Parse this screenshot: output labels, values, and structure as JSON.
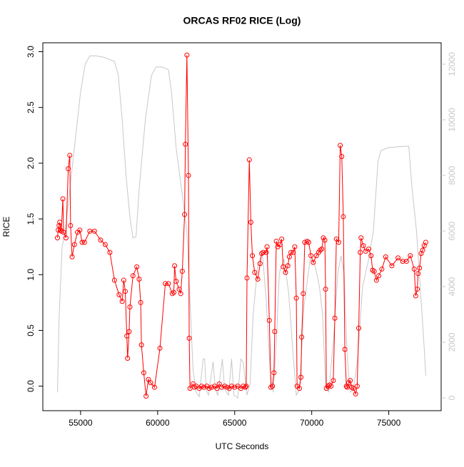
{
  "chart_data": {
    "type": "line",
    "title": "ORCAS RF02 RICE (Log)",
    "x_label": "UTC Seconds",
    "y_label": "RICE",
    "xlim": [
      52550,
      78400
    ],
    "xticks": [
      55000,
      60000,
      65000,
      70000,
      75000
    ],
    "ylim": [
      -0.22,
      3.08
    ],
    "yticks": [
      {
        "value": 0,
        "label": "0.0"
      },
      {
        "value": 0.5,
        "label": "0.5"
      },
      {
        "value": 1,
        "label": "1.0"
      },
      {
        "value": 1.5,
        "label": "1.5"
      },
      {
        "value": 2,
        "label": "2.0"
      },
      {
        "value": 2.5,
        "label": "2.5"
      },
      {
        "value": 3,
        "label": "3.0"
      }
    ],
    "y2lim": [
      -460,
      12770
    ],
    "y2ticks": [
      0,
      2000,
      4000,
      6000,
      8000,
      10000,
      12000
    ],
    "series": [
      {
        "color": "#ff0000",
        "markers": true,
        "x": [
          53500,
          53550,
          53600,
          53650,
          53700,
          53750,
          53850,
          53900,
          54050,
          54200,
          54300,
          54350,
          54450,
          54600,
          54800,
          54950,
          55100,
          55250,
          55600,
          55900,
          56300,
          56600,
          56900,
          57200,
          57500,
          57700,
          57800,
          57900,
          58000,
          58050,
          58150,
          58200,
          58400,
          58650,
          58800,
          58900,
          58950,
          59100,
          59250,
          59400,
          59550,
          59800,
          60150,
          60500,
          60700,
          60950,
          61050,
          61100,
          61200,
          61400,
          61500,
          61600,
          61750,
          61800,
          61900,
          62000,
          62050,
          62100,
          62300,
          62400,
          62500,
          62700,
          62850,
          63000,
          63200,
          63350,
          63500,
          63700,
          63850,
          64000,
          64150,
          64350,
          64500,
          64650,
          64800,
          65000,
          65200,
          65400,
          65550,
          65700,
          65750,
          65800,
          65950,
          66050,
          66150,
          66300,
          66500,
          66650,
          66750,
          66850,
          67050,
          67100,
          67250,
          67350,
          67450,
          67550,
          67600,
          67700,
          67800,
          67950,
          68050,
          68150,
          68300,
          68450,
          68550,
          68650,
          68800,
          68900,
          69000,
          69050,
          69200,
          69300,
          69350,
          69450,
          69550,
          69700,
          69800,
          69950,
          70100,
          70300,
          70450,
          70550,
          70650,
          70750,
          70850,
          70900,
          70950,
          71050,
          71150,
          71250,
          71400,
          71500,
          71600,
          71750,
          71850,
          71950,
          72050,
          72150,
          72250,
          72300,
          72400,
          72500,
          72600,
          72700,
          72850,
          72950,
          73050,
          73150,
          73200,
          73350,
          73500,
          73700,
          73850,
          73950,
          74050,
          74200,
          74350,
          74550,
          74800,
          75200,
          75600,
          75900,
          76150,
          76400,
          76650,
          76750,
          76850,
          76900,
          77000,
          77100,
          77200,
          77300,
          77400
        ],
        "values": [
          1.33,
          1.4,
          1.44,
          1.47,
          1.4,
          1.39,
          1.68,
          1.38,
          1.33,
          1.95,
          2.07,
          1.44,
          1.16,
          1.27,
          1.38,
          1.4,
          1.29,
          1.29,
          1.39,
          1.39,
          1.31,
          1.27,
          1.2,
          0.95,
          0.82,
          0.76,
          0.95,
          0.85,
          0.45,
          0.25,
          0.49,
          0.71,
          0.99,
          1.07,
          0.96,
          0.75,
          0.37,
          0.12,
          -0.09,
          0.06,
          0.03,
          -0.01,
          0.34,
          0.92,
          0.92,
          0.83,
          0.84,
          1.08,
          0.94,
          0.87,
          0.83,
          1.03,
          1.54,
          2.17,
          2.97,
          1.89,
          0.43,
          -0.02,
          0.02,
          -0.01,
          0.0,
          -0.02,
          0.0,
          -0.01,
          0.0,
          -0.02,
          -0.01,
          0.0,
          -0.02,
          0.02,
          -0.01,
          0.0,
          -0.01,
          -0.02,
          0.0,
          -0.01,
          0.0,
          -0.02,
          0.0,
          -0.01,
          0.0,
          0.97,
          2.03,
          1.47,
          1.17,
          1.02,
          0.96,
          1.1,
          1.19,
          1.2,
          1.2,
          1.25,
          0.59,
          -0.01,
          0.0,
          0.12,
          0.49,
          1.3,
          1.25,
          1.27,
          1.32,
          1.07,
          1.02,
          1.08,
          1.16,
          1.2,
          1.2,
          1.25,
          0.79,
          0.0,
          -0.02,
          0.08,
          0.44,
          0.83,
          1.29,
          1.3,
          1.29,
          1.17,
          1.11,
          1.17,
          1.2,
          1.22,
          1.23,
          1.33,
          1.31,
          0.87,
          -0.02,
          0.0,
          0.01,
          0.0,
          0.05,
          0.61,
          1.32,
          1.29,
          2.16,
          2.06,
          1.52,
          0.33,
          0.0,
          -0.01,
          0.03,
          0.05,
          -0.01,
          -0.02,
          -0.07,
          0.0,
          0.52,
          1.2,
          1.33,
          1.26,
          1.21,
          1.23,
          1.17,
          1.04,
          1.03,
          0.95,
          0.99,
          1.05,
          1.16,
          1.08,
          1.15,
          1.12,
          1.12,
          1.17,
          1.05,
          0.81,
          0.87,
          1.01,
          1.06,
          1.19,
          1.22,
          1.26,
          1.29
        ]
      },
      {
        "color": "#c8c8c8",
        "axis": "y2",
        "x": [
          53500,
          53600,
          53800,
          54000,
          54300,
          54600,
          55000,
          55300,
          55600,
          56000,
          56500,
          57200,
          57450,
          57700,
          57950,
          58200,
          58400,
          58600,
          58800,
          59200,
          59600,
          59900,
          60300,
          60700,
          60900,
          61200,
          61600,
          61900,
          62100,
          62300,
          62500,
          62700,
          62950,
          63050,
          63150,
          63300,
          63600,
          63750,
          63900,
          64200,
          64350,
          64600,
          64800,
          64950,
          65200,
          65400,
          65550,
          65800,
          66000,
          66200,
          66500,
          66800,
          67050,
          67300,
          67500,
          67700,
          67900,
          68200,
          68500,
          68800,
          69000,
          69200,
          69500,
          69900,
          70200,
          70500,
          70700,
          70900,
          71100,
          71400,
          71700,
          71900,
          72100,
          72300,
          72500,
          72700,
          73000,
          73300,
          73700,
          74000,
          74300,
          74500,
          75000,
          76000,
          76300,
          76500,
          76800,
          77100,
          77300,
          77400
        ],
        "values": [
          200,
          2800,
          5400,
          6000,
          7500,
          9000,
          11000,
          12000,
          12300,
          12300,
          12250,
          12100,
          11600,
          10000,
          8000,
          6500,
          5750,
          5800,
          7500,
          10000,
          11600,
          11900,
          11900,
          11800,
          11000,
          9000,
          7300,
          6000,
          3500,
          1000,
          200,
          50,
          1400,
          1400,
          300,
          100,
          1300,
          300,
          100,
          1400,
          300,
          100,
          1400,
          100,
          0,
          1400,
          1300,
          100,
          500,
          3000,
          4800,
          5200,
          3500,
          1000,
          200,
          2000,
          4500,
          5000,
          3800,
          1500,
          100,
          300,
          3300,
          5000,
          4800,
          4000,
          3000,
          500,
          200,
          2000,
          4500,
          5100,
          4500,
          1500,
          200,
          300,
          1500,
          4000,
          5000,
          6000,
          8500,
          8900,
          9000,
          9050,
          9050,
          7600,
          6000,
          3500,
          1800,
          800
        ]
      }
    ]
  }
}
